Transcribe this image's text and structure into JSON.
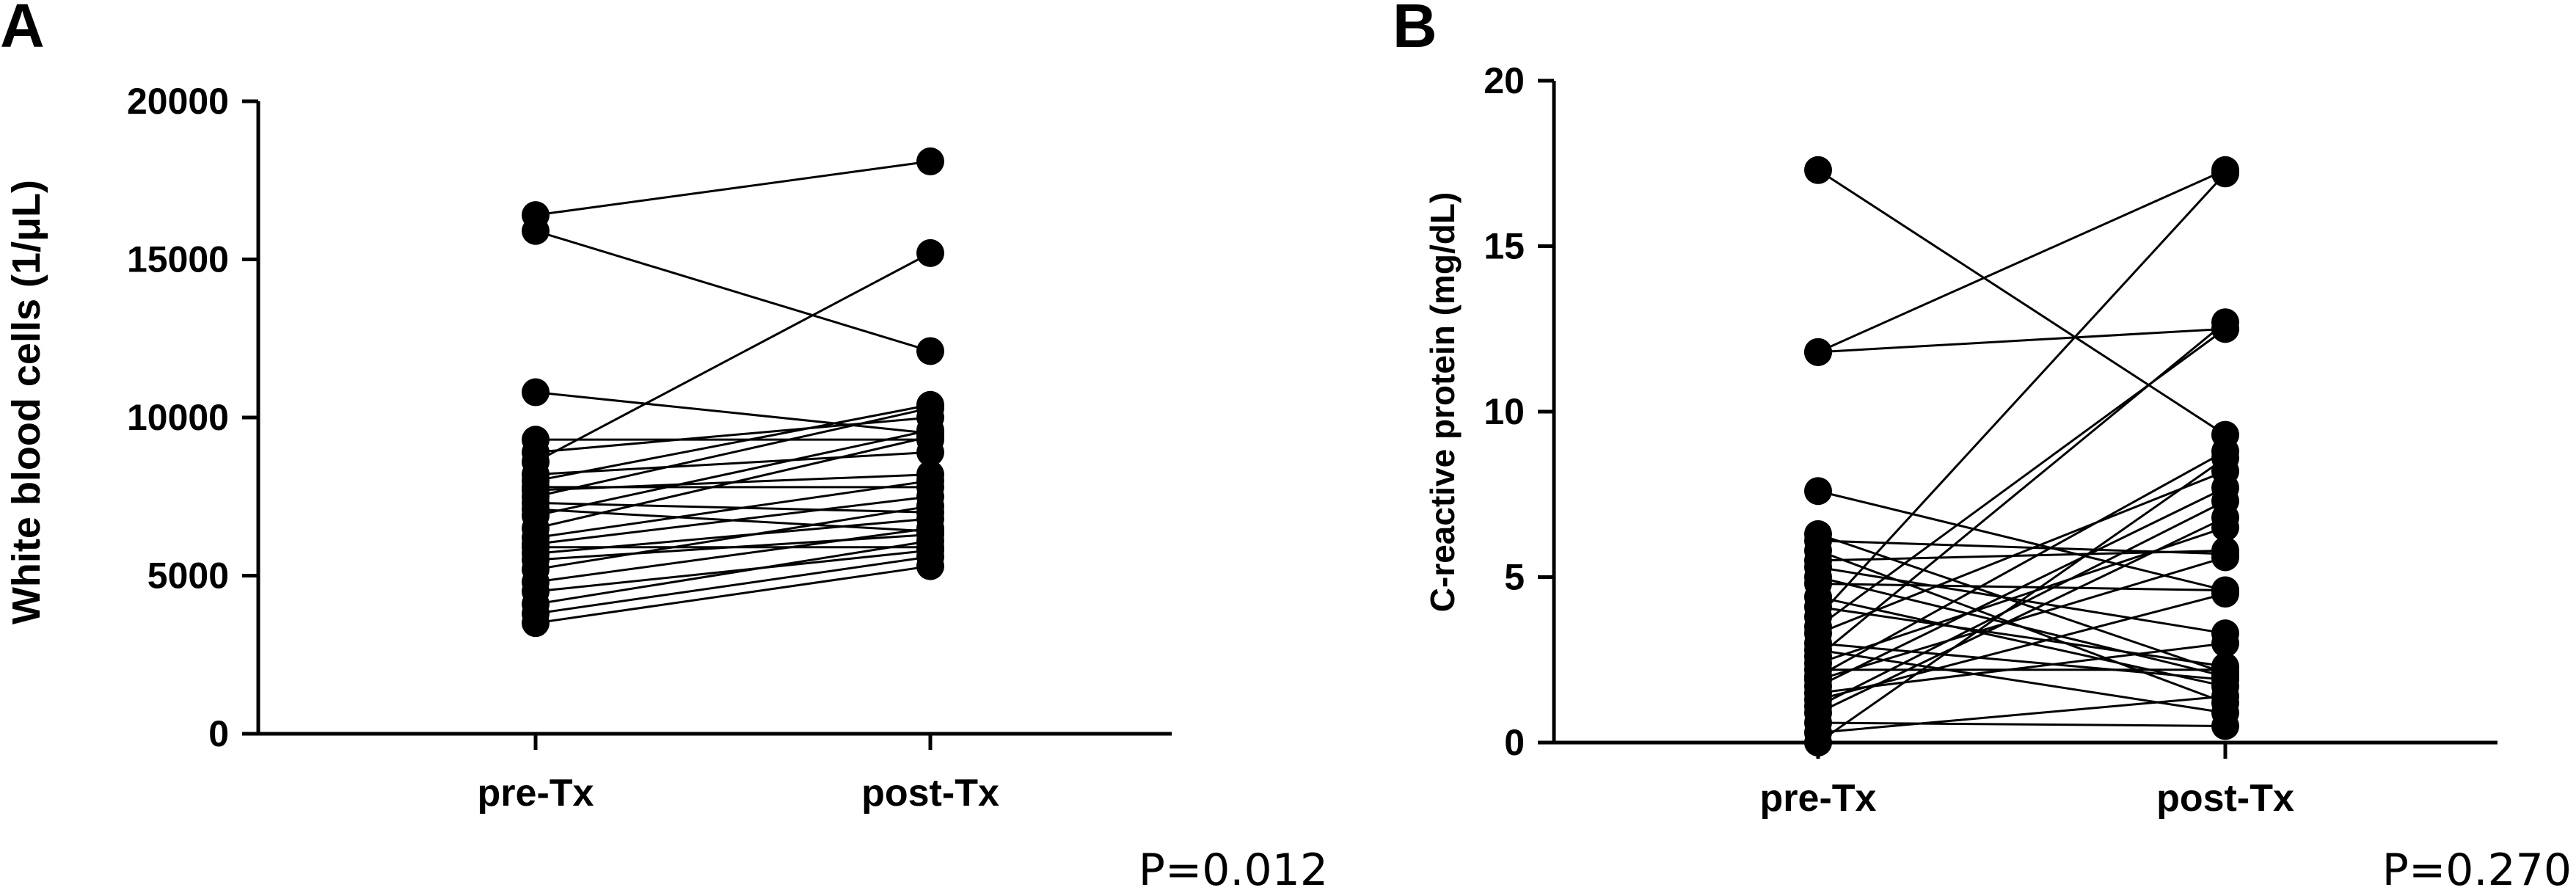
{
  "chart_data": [
    {
      "type": "scatter",
      "panel": "A",
      "ylabel": "White blood cells (1/μL)",
      "xlabel": "",
      "categories": [
        "pre-Tx",
        "post-Tx"
      ],
      "ylim": [
        0,
        20000
      ],
      "yticks": [
        "0",
        "5000",
        "10000",
        "15000",
        "20000"
      ],
      "annotation": "P=0.012",
      "pairs": [
        [
          16400,
          18100
        ],
        [
          15900,
          12100
        ],
        [
          10800,
          9500
        ],
        [
          9300,
          9300
        ],
        [
          8900,
          10000
        ],
        [
          8600,
          15200
        ],
        [
          8200,
          8900
        ],
        [
          8000,
          10400
        ],
        [
          7800,
          7800
        ],
        [
          7700,
          8200
        ],
        [
          7500,
          10300
        ],
        [
          7300,
          7000
        ],
        [
          7100,
          6400
        ],
        [
          6900,
          9600
        ],
        [
          6500,
          9400
        ],
        [
          6200,
          8000
        ],
        [
          6000,
          7500
        ],
        [
          5900,
          5900
        ],
        [
          5700,
          6800
        ],
        [
          5500,
          6300
        ],
        [
          5200,
          7200
        ],
        [
          4800,
          6500
        ],
        [
          4500,
          5800
        ],
        [
          4100,
          6100
        ],
        [
          3800,
          5600
        ],
        [
          3500,
          5300
        ]
      ]
    },
    {
      "type": "scatter",
      "panel": "B",
      "ylabel": "C-reactive protein (mg/dL)",
      "xlabel": "",
      "categories": [
        "pre-Tx",
        "post-Tx"
      ],
      "ylim": [
        0,
        20
      ],
      "yticks": [
        "0",
        "5",
        "10",
        "15",
        "20"
      ],
      "annotation": "P=0.270",
      "pairs": [
        [
          17.3,
          9.3
        ],
        [
          11.8,
          17.3
        ],
        [
          11.8,
          12.5
        ],
        [
          7.6,
          4.6
        ],
        [
          6.3,
          2.1
        ],
        [
          6.1,
          5.7
        ],
        [
          5.8,
          1.2
        ],
        [
          5.5,
          5.8
        ],
        [
          5.3,
          3.3
        ],
        [
          5.0,
          2.0
        ],
        [
          4.8,
          4.6
        ],
        [
          4.4,
          1.7
        ],
        [
          4.1,
          2.3
        ],
        [
          3.8,
          17.2
        ],
        [
          3.5,
          12.5
        ],
        [
          3.3,
          8.2
        ],
        [
          3.0,
          1.9
        ],
        [
          2.8,
          0.9
        ],
        [
          2.6,
          12.7
        ],
        [
          2.4,
          6.5
        ],
        [
          2.2,
          2.2
        ],
        [
          2.0,
          8.8
        ],
        [
          1.9,
          5.6
        ],
        [
          1.7,
          7.7
        ],
        [
          1.5,
          3.0
        ],
        [
          1.3,
          4.5
        ],
        [
          1.1,
          7.3
        ],
        [
          0.9,
          6.8
        ],
        [
          0.6,
          0.5
        ],
        [
          0.3,
          1.4
        ],
        [
          0.0,
          8.6
        ]
      ]
    }
  ]
}
